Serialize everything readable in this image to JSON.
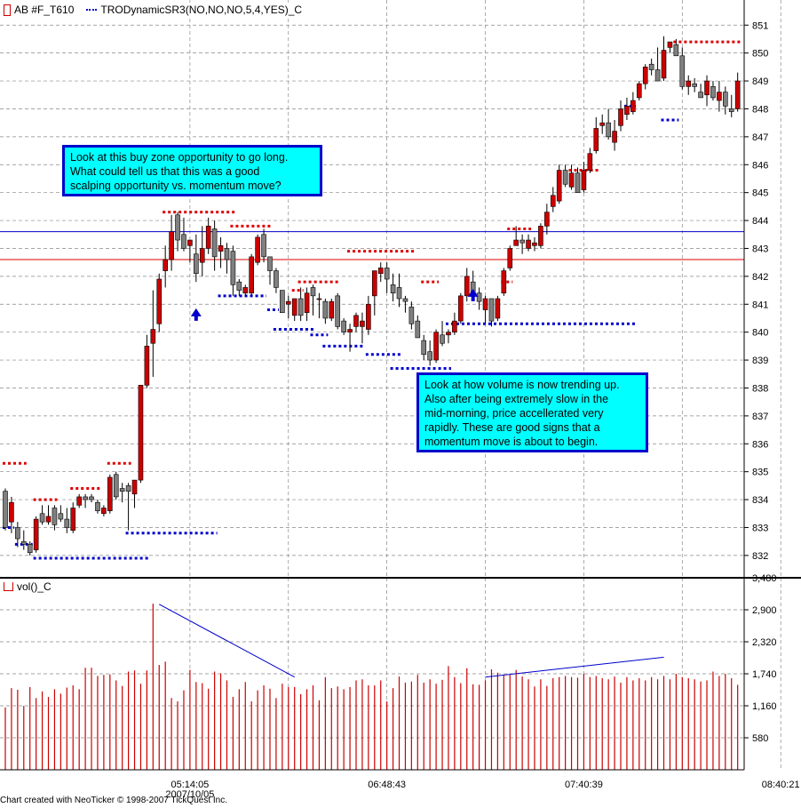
{
  "price_panel": {
    "legend_symbol": "AB #F_T610",
    "indicator_label": "TRODynamicSR3(NO,NO,NO,5,4,YES)_C"
  },
  "volume_panel": {
    "legend_label": "vol()_C"
  },
  "callouts": {
    "buy_zone": "Look at this buy zone opportunity to go long.\nWhat could tell us that this was a good\nscalping opportunity vs. momentum move?",
    "volume_note": "Look at how volume is now trending up.\nAlso after being extremely slow in the\nmid-morning, price accellerated very\nrapidly.  These are good signs that a\nmomentum move is about to begin."
  },
  "footer": "Chart created with NeoTicker © 1998-2007 TickQuest Inc.",
  "colors": {
    "up_candle": "#cc0000",
    "down_candle": "#808080",
    "resistance": "#dd0000",
    "support": "#0000cc",
    "volume": "#cc0000",
    "callout_bg": "#00ffff",
    "callout_border": "#0000cc"
  },
  "chart_data": [
    {
      "type": "candlestick",
      "title": "AB #F_T610",
      "y_ticks": [
        "832",
        "833",
        "834",
        "835",
        "836",
        "837",
        "838",
        "839",
        "840",
        "841",
        "842",
        "843",
        "844",
        "845",
        "846",
        "847",
        "848",
        "849",
        "850",
        "851"
      ],
      "ylim": [
        831.2,
        851.9
      ],
      "horizontal_lines": [
        {
          "value": 843.6,
          "color": "#0000cc"
        },
        {
          "value": 842.6,
          "color": "#dd0000"
        }
      ],
      "ohlc": [
        [
          834.3,
          834.4,
          832.9,
          833.0
        ],
        [
          833.2,
          834.1,
          832.8,
          833.9
        ],
        [
          833.0,
          833.2,
          832.3,
          832.6
        ],
        [
          832.5,
          832.9,
          832.2,
          832.4
        ],
        [
          832.4,
          832.5,
          832.0,
          832.1
        ],
        [
          832.2,
          833.4,
          832.1,
          833.3
        ],
        [
          833.5,
          833.8,
          833.1,
          833.2
        ],
        [
          833.2,
          833.8,
          833.1,
          833.4
        ],
        [
          833.7,
          833.8,
          832.9,
          833.1
        ],
        [
          833.5,
          833.8,
          833.2,
          833.3
        ],
        [
          833.3,
          833.7,
          832.8,
          833.0
        ],
        [
          832.9,
          833.9,
          832.8,
          833.7
        ],
        [
          833.8,
          834.2,
          833.7,
          834.1
        ],
        [
          834.1,
          834.2,
          833.7,
          834.0
        ],
        [
          834.1,
          834.2,
          833.9,
          834.0
        ],
        [
          833.9,
          834.0,
          833.5,
          833.6
        ],
        [
          833.5,
          833.8,
          833.4,
          833.7
        ],
        [
          833.6,
          834.9,
          833.5,
          834.8
        ],
        [
          834.9,
          835.0,
          834.0,
          834.1
        ],
        [
          834.4,
          834.6,
          833.9,
          834.3
        ],
        [
          834.5,
          834.6,
          832.9,
          834.3
        ],
        [
          834.2,
          834.7,
          833.7,
          834.7
        ],
        [
          834.7,
          838.1,
          834.6,
          838.1
        ],
        [
          838.1,
          839.9,
          838.0,
          839.5
        ],
        [
          839.6,
          841.5,
          838.4,
          840.1
        ],
        [
          840.3,
          842.1,
          840.0,
          841.9
        ],
        [
          842.2,
          843.1,
          841.6,
          842.6
        ],
        [
          842.6,
          844.2,
          842.2,
          843.6
        ],
        [
          844.2,
          844.3,
          842.9,
          843.3
        ],
        [
          843.5,
          844.1,
          842.9,
          843.0
        ],
        [
          843.1,
          843.3,
          842.5,
          843.3
        ],
        [
          842.8,
          843.5,
          841.8,
          842.1
        ],
        [
          842.5,
          843.8,
          842.0,
          843.0
        ],
        [
          843.0,
          844.1,
          842.8,
          843.8
        ],
        [
          843.7,
          844.0,
          842.2,
          842.7
        ],
        [
          842.9,
          843.4,
          842.3,
          843.1
        ],
        [
          843.0,
          843.2,
          842.1,
          842.6
        ],
        [
          842.9,
          843.1,
          841.3,
          841.7
        ],
        [
          841.8,
          841.9,
          841.3,
          841.5
        ],
        [
          841.4,
          841.7,
          841.3,
          841.6
        ],
        [
          841.4,
          842.8,
          841.3,
          842.7
        ],
        [
          842.5,
          843.5,
          842.4,
          843.4
        ],
        [
          843.5,
          843.7,
          842.5,
          842.7
        ],
        [
          842.7,
          842.7,
          841.7,
          842.2
        ],
        [
          842.2,
          842.3,
          841.4,
          841.6
        ],
        [
          841.5,
          841.5,
          840.7,
          840.7
        ],
        [
          841.0,
          841.3,
          840.5,
          841.1
        ],
        [
          840.6,
          841.2,
          840.4,
          841.2
        ],
        [
          841.2,
          841.6,
          840.4,
          840.6
        ],
        [
          840.7,
          841.6,
          840.4,
          841.4
        ],
        [
          841.6,
          841.7,
          840.6,
          841.3
        ],
        [
          841.2,
          841.4,
          840.5,
          841.2
        ],
        [
          841.1,
          841.2,
          840.3,
          840.5
        ],
        [
          840.5,
          841.2,
          840.4,
          841.1
        ],
        [
          841.3,
          841.4,
          840.1,
          840.2
        ],
        [
          840.4,
          840.5,
          839.9,
          840.0
        ],
        [
          840.0,
          840.3,
          839.3,
          840.1
        ],
        [
          840.2,
          840.7,
          840.0,
          840.6
        ],
        [
          840.2,
          840.7,
          839.6,
          840.4
        ],
        [
          840.1,
          841.3,
          839.9,
          841.0
        ],
        [
          841.3,
          842.2,
          840.6,
          842.2
        ],
        [
          842.1,
          842.5,
          841.8,
          842.3
        ],
        [
          842.3,
          842.5,
          841.4,
          841.9
        ],
        [
          841.7,
          842.1,
          841.1,
          841.4
        ],
        [
          841.6,
          842.1,
          840.9,
          841.2
        ],
        [
          841.2,
          841.3,
          840.7,
          841.1
        ],
        [
          840.9,
          841.1,
          840.1,
          840.3
        ],
        [
          840.4,
          840.6,
          839.8,
          839.8
        ],
        [
          839.7,
          839.9,
          839.0,
          839.2
        ],
        [
          839.3,
          839.7,
          838.8,
          839.0
        ],
        [
          839.0,
          840.1,
          838.9,
          840.0
        ],
        [
          839.9,
          840.4,
          839.5,
          839.6
        ],
        [
          839.9,
          840.1,
          839.6,
          840.0
        ],
        [
          840.0,
          840.7,
          839.9,
          840.4
        ],
        [
          840.4,
          841.4,
          840.3,
          841.3
        ],
        [
          841.3,
          842.3,
          841.1,
          842.0
        ],
        [
          841.8,
          842.2,
          841.2,
          841.4
        ],
        [
          841.4,
          841.6,
          840.8,
          841.1
        ],
        [
          840.8,
          841.3,
          840.3,
          841.2
        ],
        [
          841.2,
          841.2,
          840.2,
          840.4
        ],
        [
          840.5,
          841.3,
          840.4,
          841.2
        ],
        [
          841.4,
          842.3,
          841.3,
          842.2
        ],
        [
          842.3,
          843.1,
          842.2,
          843.0
        ],
        [
          843.1,
          843.8,
          843.1,
          843.3
        ],
        [
          843.3,
          843.5,
          842.8,
          843.2
        ],
        [
          843.0,
          843.5,
          842.9,
          843.3
        ],
        [
          843.1,
          843.4,
          842.9,
          843.2
        ],
        [
          843.1,
          843.9,
          843.0,
          843.8
        ],
        [
          843.8,
          844.6,
          843.5,
          844.3
        ],
        [
          844.5,
          845.2,
          844.3,
          844.9
        ],
        [
          844.7,
          846.0,
          844.6,
          845.8
        ],
        [
          845.8,
          846.0,
          845.2,
          845.3
        ],
        [
          845.2,
          846.0,
          845.1,
          845.7
        ],
        [
          845.7,
          845.9,
          845.0,
          845.0
        ],
        [
          845.1,
          846.1,
          845.0,
          845.8
        ],
        [
          845.8,
          846.6,
          845.7,
          846.4
        ],
        [
          846.5,
          847.7,
          846.4,
          847.3
        ],
        [
          847.4,
          847.8,
          847.1,
          847.5
        ],
        [
          847.5,
          848.0,
          846.9,
          847.0
        ],
        [
          846.8,
          847.6,
          846.5,
          847.2
        ],
        [
          847.4,
          848.3,
          847.2,
          848.0
        ],
        [
          847.8,
          848.4,
          847.6,
          848.1
        ],
        [
          847.9,
          848.6,
          847.8,
          848.3
        ],
        [
          848.4,
          849.0,
          848.3,
          848.9
        ],
        [
          848.9,
          849.6,
          848.7,
          849.5
        ],
        [
          849.6,
          849.8,
          849.2,
          849.4
        ],
        [
          849.4,
          850.2,
          849.0,
          849.0
        ],
        [
          849.1,
          850.6,
          849.0,
          850.1
        ],
        [
          850.2,
          850.4,
          850.0,
          850.4
        ],
        [
          850.3,
          850.5,
          849.9,
          849.9
        ],
        [
          849.9,
          850.2,
          848.7,
          848.8
        ],
        [
          848.8,
          849.2,
          848.5,
          849.0
        ],
        [
          848.9,
          849.1,
          848.6,
          848.8
        ],
        [
          848.6,
          848.9,
          848.4,
          848.4
        ],
        [
          848.5,
          849.2,
          848.1,
          849.0
        ],
        [
          848.8,
          849.0,
          848.3,
          848.4
        ],
        [
          848.3,
          849.0,
          847.9,
          848.6
        ],
        [
          848.6,
          848.8,
          847.8,
          848.1
        ],
        [
          848.0,
          848.5,
          847.7,
          847.9
        ],
        [
          848.0,
          849.3,
          847.9,
          849.0
        ]
      ],
      "resistance_segments": [
        {
          "from": 0,
          "to": 3,
          "value": 835.3
        },
        {
          "from": 5,
          "to": 8,
          "value": 834.0
        },
        {
          "from": 11,
          "to": 15,
          "value": 834.4
        },
        {
          "from": 17,
          "to": 20,
          "value": 835.3
        },
        {
          "from": 26,
          "to": 37,
          "value": 844.3
        },
        {
          "from": 37,
          "to": 43,
          "value": 843.8
        },
        {
          "from": 47,
          "to": 48,
          "value": 841.5
        },
        {
          "from": 48,
          "to": 54,
          "value": 841.8
        },
        {
          "from": 56,
          "to": 66,
          "value": 842.9
        },
        {
          "from": 68,
          "to": 70,
          "value": 841.8
        },
        {
          "from": 81,
          "to": 82,
          "value": 841.8
        },
        {
          "from": 82,
          "to": 85,
          "value": 843.7
        },
        {
          "from": 92,
          "to": 96,
          "value": 845.8
        },
        {
          "from": 109,
          "to": 119,
          "value": 850.4
        }
      ],
      "support_segments": [
        {
          "from": 0,
          "to": 1,
          "value": 833.0
        },
        {
          "from": 2,
          "to": 4,
          "value": 832.4
        },
        {
          "from": 5,
          "to": 23,
          "value": 831.9
        },
        {
          "from": 20,
          "to": 34,
          "value": 832.8
        },
        {
          "from": 35,
          "to": 42,
          "value": 841.3
        },
        {
          "from": 43,
          "to": 44,
          "value": 840.8
        },
        {
          "from": 44,
          "to": 50,
          "value": 840.1
        },
        {
          "from": 50,
          "to": 52,
          "value": 839.9
        },
        {
          "from": 52,
          "to": 58,
          "value": 839.5
        },
        {
          "from": 59,
          "to": 64,
          "value": 839.2
        },
        {
          "from": 63,
          "to": 72,
          "value": 838.7
        },
        {
          "from": 72,
          "to": 102,
          "value": 840.3
        },
        {
          "from": 101,
          "to": 102,
          "value": 848.1
        },
        {
          "from": 107,
          "to": 109,
          "value": 847.6
        }
      ],
      "arrows": [
        {
          "bar": 31,
          "value": 840.6
        },
        {
          "bar": 76,
          "value": 841.3
        }
      ]
    },
    {
      "type": "bar",
      "title": "vol()_C",
      "y_ticks": [
        "580",
        "1,160",
        "1,740",
        "2,320",
        "2,900",
        "3,480"
      ],
      "ylim": [
        0,
        3480
      ],
      "values": [
        1130,
        1480,
        1450,
        1160,
        1500,
        1300,
        1420,
        1320,
        1460,
        1380,
        1490,
        1530,
        1460,
        1850,
        1850,
        1700,
        1720,
        1730,
        1620,
        1520,
        1780,
        1800,
        1560,
        1800,
        3010,
        1900,
        1960,
        1300,
        1240,
        1440,
        1810,
        1590,
        1570,
        1470,
        1780,
        1750,
        1620,
        1320,
        1460,
        1590,
        1240,
        1440,
        1530,
        1470,
        1300,
        1560,
        1500,
        1500,
        1370,
        1460,
        1530,
        1260,
        1680,
        1480,
        1510,
        1460,
        1500,
        1620,
        1640,
        1530,
        1530,
        1620,
        1240,
        1480,
        1690,
        1580,
        1600,
        1720,
        1580,
        1640,
        1560,
        1630,
        1880,
        1680,
        1570,
        1840,
        1550,
        1540,
        1620,
        1820,
        1760,
        1710,
        1720,
        1810,
        1690,
        1640,
        1510,
        1640,
        1520,
        1660,
        1680,
        1700,
        1680,
        1670,
        1740,
        1680,
        1700,
        1660,
        1640,
        1690,
        1580,
        1680,
        1620,
        1660,
        1620,
        1680,
        1640,
        1700,
        1640,
        1740,
        1680,
        1660,
        1640,
        1600,
        1620,
        1780,
        1700,
        1740,
        1660,
        1540
      ],
      "trend_lines": [
        {
          "from": [
            25,
            3000
          ],
          "to": [
            47,
            1680
          ]
        },
        {
          "from": [
            78,
            1680
          ],
          "to": [
            107,
            2040
          ]
        }
      ]
    }
  ],
  "x_axis": {
    "labels": [
      {
        "bar": 30,
        "text": "05:14:05"
      },
      {
        "bar": 62,
        "text": "06:48:43"
      },
      {
        "bar": 94,
        "text": "07:40:39"
      },
      {
        "bar": 126,
        "text": "08:40:21"
      }
    ],
    "date_label": {
      "bar": 30,
      "text": "2007/10/05"
    }
  }
}
